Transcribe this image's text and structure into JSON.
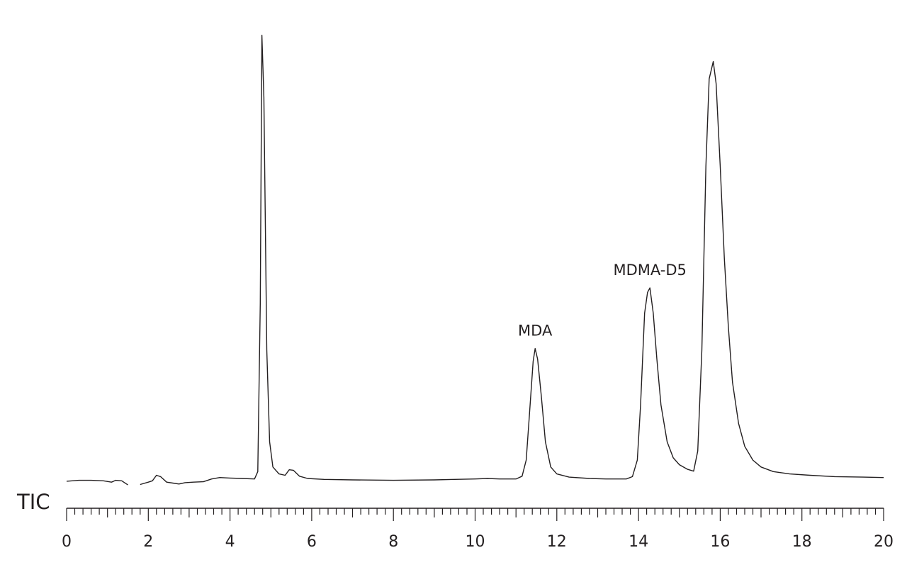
{
  "chart_data": {
    "type": "line",
    "title": "",
    "xlabel": "",
    "ylabel": "",
    "trace_label": "TIC",
    "xlim": [
      0,
      20
    ],
    "ylim": [
      0,
      100
    ],
    "grid": false,
    "x_major_ticks": [
      0,
      2,
      4,
      6,
      8,
      10,
      12,
      14,
      16,
      18,
      20
    ],
    "x_minor_tick_step": 0.2,
    "series": [
      {
        "segments": [
          [
            [
              0.0,
              1.4
            ],
            [
              0.3,
              1.6
            ],
            [
              0.6,
              1.6
            ],
            [
              0.9,
              1.5
            ],
            [
              1.1,
              1.2
            ],
            [
              1.2,
              1.6
            ],
            [
              1.35,
              1.5
            ],
            [
              1.5,
              0.6
            ]
          ],
          [
            [
              1.8,
              0.7
            ],
            [
              2.0,
              1.2
            ],
            [
              2.1,
              1.5
            ],
            [
              2.2,
              2.7
            ],
            [
              2.3,
              2.4
            ],
            [
              2.45,
              1.2
            ],
            [
              2.6,
              1.0
            ],
            [
              2.75,
              0.8
            ],
            [
              2.9,
              1.1
            ],
            [
              3.1,
              1.2
            ],
            [
              3.35,
              1.3
            ],
            [
              3.55,
              1.9
            ],
            [
              3.75,
              2.2
            ],
            [
              4.0,
              2.1
            ],
            [
              4.3,
              2.0
            ],
            [
              4.6,
              1.9
            ],
            [
              4.68,
              3.5
            ],
            [
              4.74,
              40.0
            ],
            [
              4.78,
              98.5
            ],
            [
              4.83,
              85.0
            ],
            [
              4.9,
              30.0
            ],
            [
              4.97,
              10.0
            ],
            [
              5.05,
              4.5
            ],
            [
              5.2,
              3.0
            ],
            [
              5.35,
              2.7
            ],
            [
              5.45,
              3.9
            ],
            [
              5.55,
              3.8
            ],
            [
              5.7,
              2.5
            ],
            [
              5.9,
              2.0
            ],
            [
              6.3,
              1.8
            ],
            [
              7.0,
              1.7
            ],
            [
              8.0,
              1.6
            ],
            [
              9.0,
              1.7
            ],
            [
              9.5,
              1.8
            ],
            [
              10.0,
              1.9
            ],
            [
              10.3,
              2.0
            ],
            [
              10.6,
              1.9
            ],
            [
              11.0,
              1.9
            ],
            [
              11.15,
              2.5
            ],
            [
              11.25,
              6.0
            ],
            [
              11.33,
              16.0
            ],
            [
              11.42,
              27.5
            ],
            [
              11.47,
              30.3
            ],
            [
              11.53,
              28.0
            ],
            [
              11.62,
              20.0
            ],
            [
              11.72,
              10.0
            ],
            [
              11.85,
              4.5
            ],
            [
              12.0,
              3.0
            ],
            [
              12.3,
              2.3
            ],
            [
              12.8,
              2.0
            ],
            [
              13.2,
              1.9
            ],
            [
              13.7,
              1.9
            ],
            [
              13.85,
              2.4
            ],
            [
              13.97,
              6.0
            ],
            [
              14.05,
              18.0
            ],
            [
              14.15,
              38.0
            ],
            [
              14.22,
              42.5
            ],
            [
              14.28,
              43.5
            ],
            [
              14.36,
              38.0
            ],
            [
              14.45,
              28.0
            ],
            [
              14.55,
              18.0
            ],
            [
              14.7,
              10.0
            ],
            [
              14.85,
              6.5
            ],
            [
              15.0,
              5.0
            ],
            [
              15.2,
              4.0
            ],
            [
              15.35,
              3.6
            ],
            [
              15.45,
              8.0
            ],
            [
              15.55,
              30.0
            ],
            [
              15.65,
              70.0
            ],
            [
              15.73,
              89.0
            ],
            [
              15.83,
              92.8
            ],
            [
              15.9,
              88.0
            ],
            [
              16.0,
              70.0
            ],
            [
              16.1,
              50.0
            ],
            [
              16.2,
              35.0
            ],
            [
              16.3,
              23.0
            ],
            [
              16.45,
              14.0
            ],
            [
              16.6,
              9.0
            ],
            [
              16.8,
              6.0
            ],
            [
              17.0,
              4.5
            ],
            [
              17.3,
              3.5
            ],
            [
              17.7,
              3.0
            ],
            [
              18.2,
              2.7
            ],
            [
              18.8,
              2.4
            ],
            [
              19.5,
              2.3
            ],
            [
              20.0,
              2.2
            ]
          ]
        ]
      }
    ],
    "annotations": [
      {
        "text": "MDA",
        "x": 11.47,
        "y": 30.3
      },
      {
        "text": "MDMA-D5",
        "x": 14.28,
        "y": 43.5
      }
    ]
  }
}
